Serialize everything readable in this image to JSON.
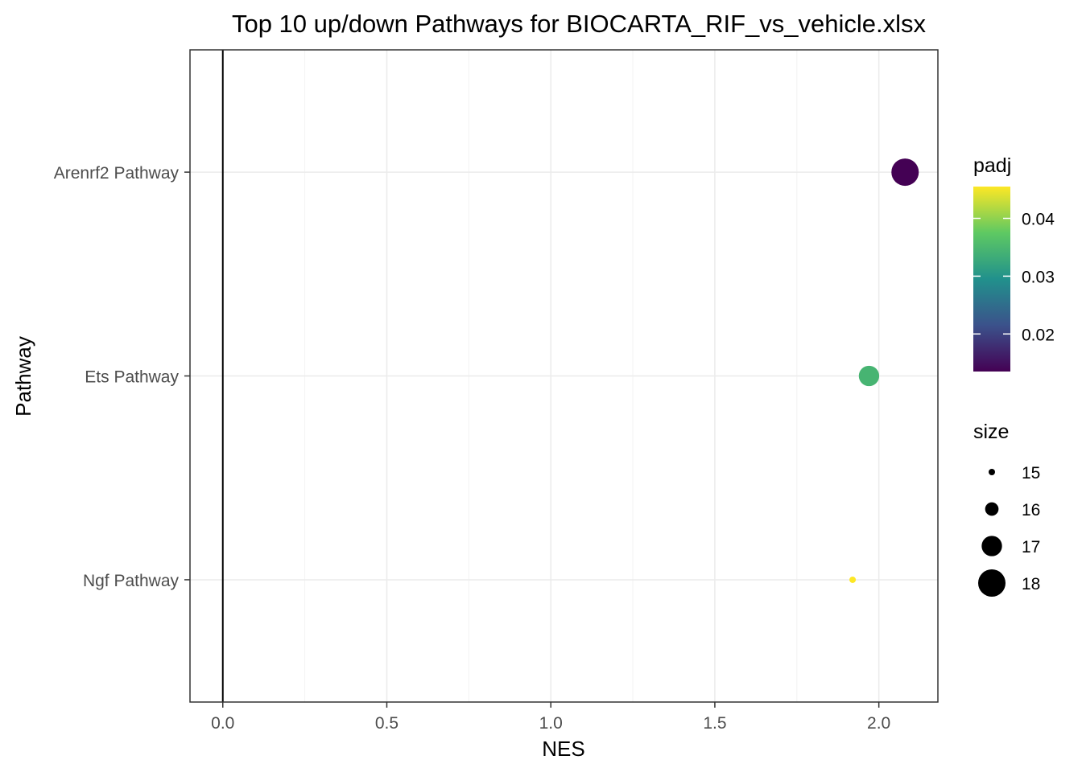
{
  "chart_data": {
    "type": "scatter",
    "title": "Top 10 up/down Pathways for  BIOCARTA_RIF_vs_vehicle.xlsx",
    "xlabel": "NES",
    "ylabel": "Pathway",
    "xlim": [
      -0.1,
      2.18
    ],
    "x_ticks": [
      0.0,
      0.5,
      1.0,
      1.5,
      2.0
    ],
    "x_tick_labels": [
      "0.0",
      "0.5",
      "1.0",
      "1.5",
      "2.0"
    ],
    "reference_line_x": 0,
    "grid": true,
    "categories": [
      "Arenrf2 Pathway",
      "Ets Pathway",
      "Ngf Pathway"
    ],
    "points": [
      {
        "pathway": "Arenrf2 Pathway",
        "NES": 2.08,
        "padj": 0.0135,
        "size": 18
      },
      {
        "pathway": "Ets Pathway",
        "NES": 1.97,
        "padj": 0.0345,
        "size": 17
      },
      {
        "pathway": "Ngf Pathway",
        "NES": 1.92,
        "padj": 0.0455,
        "size": 15
      }
    ],
    "color_legend": {
      "title": "padj",
      "range": [
        0.0135,
        0.0455
      ],
      "ticks": [
        0.02,
        0.03,
        0.04
      ],
      "tick_labels": [
        "0.02",
        "0.03",
        "0.04"
      ],
      "colormap": [
        "#440154",
        "#3b528b",
        "#21918c",
        "#5ec962",
        "#fde725"
      ]
    },
    "size_legend": {
      "title": "size",
      "values": [
        15,
        16,
        17,
        18
      ],
      "labels": [
        "15",
        "16",
        "17",
        "18"
      ]
    },
    "legend_placement": "right"
  }
}
